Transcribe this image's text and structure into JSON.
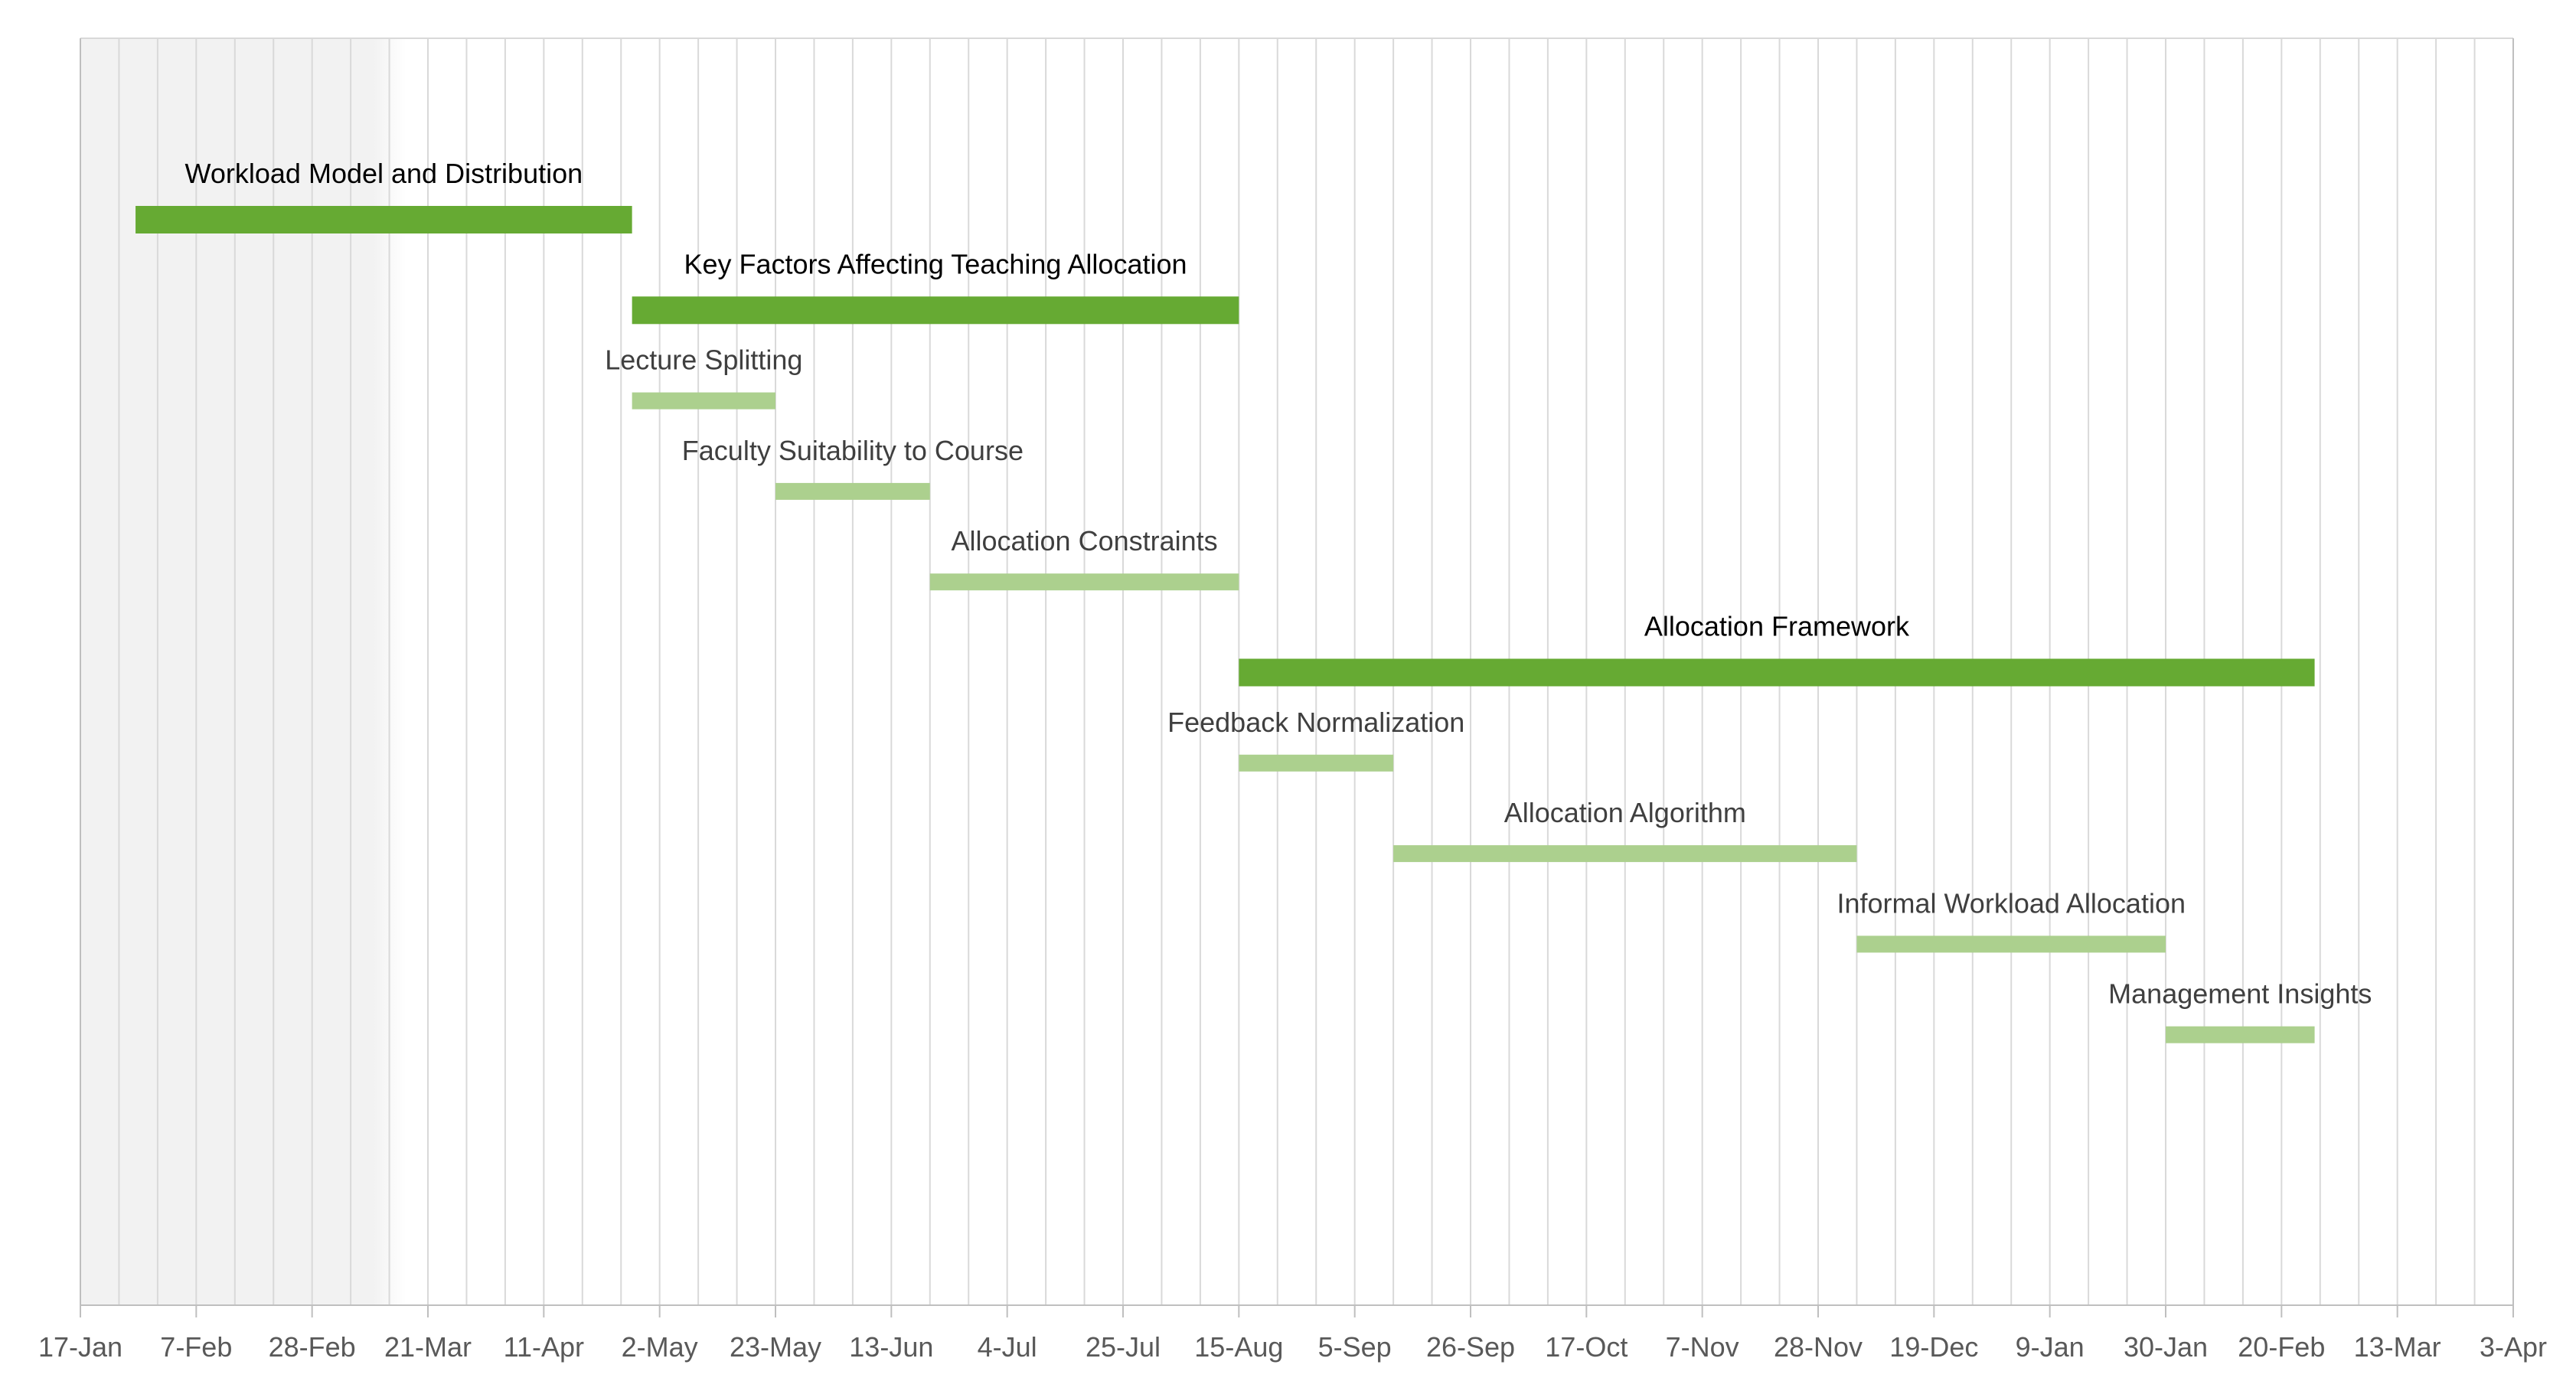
{
  "chart_data": {
    "type": "gantt",
    "x_axis": {
      "range": [
        "2022-01-17",
        "2023-04-03"
      ],
      "tick_interval_days": 21,
      "tick_labels": [
        "17-Jan",
        "7-Feb",
        "28-Feb",
        "21-Mar",
        "11-Apr",
        "2-May",
        "23-May",
        "13-Jun",
        "4-Jul",
        "25-Jul",
        "15-Aug",
        "5-Sep",
        "26-Sep",
        "17-Oct",
        "7-Nov",
        "28-Nov",
        "19-Dec",
        "9-Jan",
        "30-Jan",
        "20-Feb",
        "13-Mar",
        "3-Apr"
      ]
    },
    "grid": true,
    "shaded_period": {
      "start": "2022-01-17",
      "end": "2022-03-17"
    },
    "colors": {
      "phase": "#66aa33",
      "task": "#acd08e",
      "grid": "#d9d9d9",
      "shade": "#f2f2f2",
      "phase_label": "#000000",
      "task_label": "#3f3f3f",
      "tick_label": "#595959",
      "axis": "#bfbfbf"
    },
    "tasks": [
      {
        "label": "Workload Model and Distribution",
        "start": "2022-01-27",
        "end": "2022-04-27",
        "level": "phase"
      },
      {
        "label": "Key Factors Affecting Teaching Allocation",
        "start": "2022-04-27",
        "end": "2022-08-15",
        "level": "phase"
      },
      {
        "label": "Lecture Splitting",
        "start": "2022-04-27",
        "end": "2022-05-23",
        "level": "task"
      },
      {
        "label": "Faculty Suitability to Course",
        "start": "2022-05-23",
        "end": "2022-06-20",
        "level": "task"
      },
      {
        "label": "Allocation Constraints",
        "start": "2022-06-20",
        "end": "2022-08-15",
        "level": "task"
      },
      {
        "label": "Allocation Framework",
        "start": "2022-08-15",
        "end": "2023-02-26",
        "level": "phase"
      },
      {
        "label": "Feedback Normalization",
        "start": "2022-08-15",
        "end": "2022-09-12",
        "level": "task"
      },
      {
        "label": "Allocation Algorithm",
        "start": "2022-09-12",
        "end": "2022-12-05",
        "level": "task"
      },
      {
        "label": "Informal Workload Allocation",
        "start": "2022-12-05",
        "end": "2023-01-30",
        "level": "task"
      },
      {
        "label": "Management Insights",
        "start": "2023-01-30",
        "end": "2023-02-26",
        "level": "task"
      }
    ]
  }
}
